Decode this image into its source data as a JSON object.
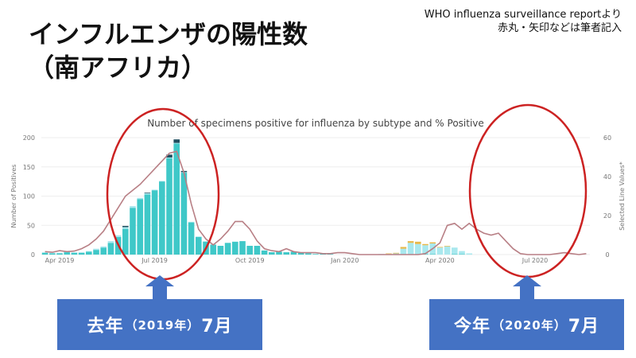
{
  "slide": {
    "title_line1": "インフルエンザの陽性数",
    "title_line2": "（南アフリカ）",
    "source_line1": "WHO influenza surveillance reportより",
    "source_line2": "赤丸・矢印などは筆者記入"
  },
  "callouts": {
    "left": {
      "year_word": "去年",
      "paren": "（2019年）",
      "month": "7月"
    },
    "right": {
      "year_word": "今年",
      "paren": "（2020年）",
      "month": "7月"
    }
  },
  "colors": {
    "bar_main": "#3fc8c8",
    "bar_light": "#a9e8ee",
    "bar_dark": "#1f4e5f",
    "bar_yellow": "#e8b84a",
    "line": "#b87f85",
    "circle": "#cc2222",
    "callout": "#4472c4"
  },
  "chart_data": {
    "type": "bar",
    "title": "Number of specimens positive for influenza by subtype and % Positive",
    "ylabel": "Number of Positives",
    "y2label": "Selected Line Values*",
    "ylim": [
      0,
      200
    ],
    "y2lim": [
      0,
      60
    ],
    "yticks": [
      0,
      50,
      100,
      150,
      200
    ],
    "y2ticks": [
      0,
      20,
      40,
      60
    ],
    "xticks": [
      "Apr 2019",
      "Jul 2019",
      "Oct 2019",
      "Jan 2020",
      "Apr 2020",
      "Jul 2020"
    ],
    "weeks": 75,
    "series": [
      {
        "values": [
          3,
          2,
          2,
          4,
          3,
          3,
          5,
          8,
          12,
          20,
          30,
          44,
          80,
          95,
          103,
          110,
          125,
          165,
          190,
          140,
          55,
          30,
          22,
          17,
          15,
          20,
          22,
          23,
          15,
          15,
          7,
          4,
          5,
          4,
          5,
          3,
          2,
          1,
          2,
          1,
          0,
          0,
          0,
          0,
          0,
          0,
          0,
          0,
          0,
          0,
          0,
          1,
          1,
          1,
          0,
          0,
          1,
          1,
          0,
          0,
          0,
          0,
          0,
          0,
          0,
          0,
          0,
          0,
          0,
          0,
          0,
          0,
          0,
          0,
          0
        ]
      },
      {
        "values": [
          1,
          1,
          1,
          1,
          1,
          1,
          1,
          2,
          2,
          3,
          3,
          3,
          3,
          2,
          2,
          1,
          1,
          1,
          1,
          1,
          1,
          1,
          1,
          0,
          0,
          0,
          0,
          0,
          0,
          0,
          0,
          0,
          0,
          0,
          0,
          0,
          0,
          0,
          0,
          0,
          0,
          0,
          0,
          0,
          0,
          0,
          1,
          1,
          2,
          10,
          20,
          17,
          15,
          18,
          12,
          14,
          11,
          5,
          2,
          0,
          0,
          0,
          0,
          0,
          0,
          0,
          0,
          0,
          0,
          0,
          0,
          0,
          0,
          0,
          0
        ]
      },
      {
        "values": [
          0,
          0,
          0,
          0,
          0,
          0,
          0,
          0,
          0,
          0,
          0,
          2,
          0,
          0,
          1,
          0,
          0,
          5,
          6,
          2,
          0,
          0,
          0,
          0,
          0,
          0,
          0,
          0,
          0,
          0,
          0,
          0,
          0,
          0,
          0,
          0,
          0,
          0,
          0,
          0,
          0,
          0,
          0,
          0,
          0,
          0,
          0,
          0,
          0,
          0,
          0,
          0,
          0,
          0,
          0,
          0,
          0,
          0,
          0,
          0,
          0,
          0,
          0,
          0,
          0,
          0,
          0,
          0,
          0,
          0,
          0,
          0,
          0,
          0,
          0
        ]
      },
      {
        "values": [
          0,
          0,
          0,
          0,
          0,
          0,
          0,
          0,
          0,
          0,
          0,
          0,
          0,
          0,
          0,
          0,
          0,
          0,
          0,
          0,
          0,
          0,
          0,
          0,
          0,
          0,
          0,
          0,
          0,
          0,
          0,
          0,
          0,
          0,
          0,
          0,
          0,
          0,
          0,
          0,
          0,
          0,
          0,
          0,
          0,
          0,
          0,
          1,
          1,
          3,
          3,
          4,
          2,
          2,
          1,
          1,
          0,
          0,
          0,
          0,
          0,
          0,
          0,
          0,
          0,
          0,
          0,
          0,
          0,
          0,
          0,
          0,
          0,
          0,
          0
        ]
      },
      {
        "type": "line",
        "values": [
          1.5,
          1.2,
          2,
          1.5,
          1.8,
          3,
          5,
          8,
          12,
          18,
          24,
          30,
          33,
          36,
          40,
          44,
          48,
          52,
          53,
          42,
          26,
          13,
          8,
          5,
          8,
          12,
          17,
          17,
          13,
          7,
          3,
          2,
          1.5,
          3,
          1.5,
          1,
          1,
          1,
          0.5,
          0.5,
          1,
          1,
          0.5,
          0,
          0,
          0,
          0,
          0,
          0,
          0,
          0,
          0,
          0.5,
          3,
          6,
          15,
          16,
          13,
          16,
          13,
          11,
          10,
          11,
          7,
          3,
          0.5,
          0,
          0,
          0,
          0,
          0.5,
          1,
          0.5,
          0,
          0.5
        ]
      }
    ]
  }
}
